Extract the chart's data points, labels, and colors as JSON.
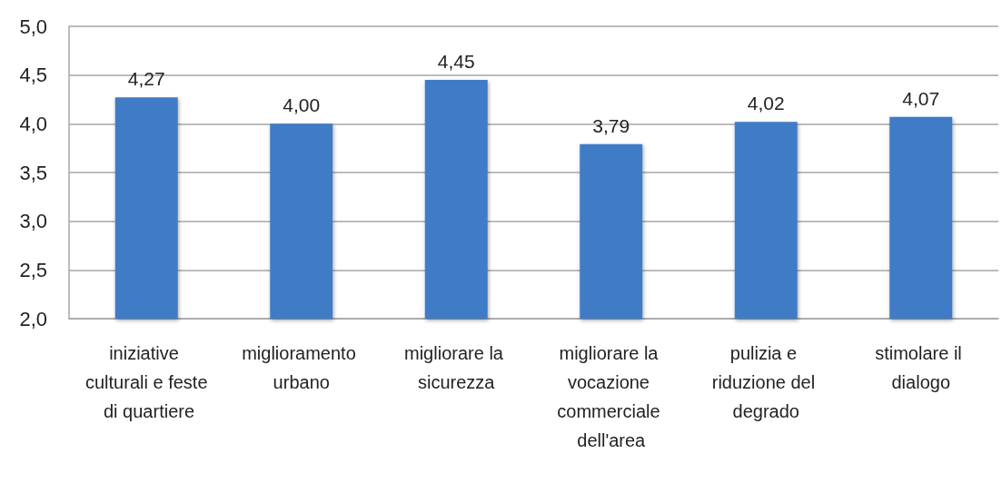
{
  "chart_data": {
    "type": "bar",
    "categories": [
      "iniziative culturali e feste di quartiere",
      "miglioramento urbano",
      "migliorare la sicurezza",
      "migliorare la vocazione commerciale dell'area",
      "pulizia e riduzione del degrado",
      "stimolare il dialogo"
    ],
    "values": [
      4.27,
      4.0,
      4.45,
      3.79,
      4.02,
      4.07
    ],
    "value_labels": [
      "4,27",
      "4,00",
      "4,45",
      "3,79",
      "4,02",
      "4,07"
    ],
    "color": "#3f7bc6",
    "ylim": [
      2,
      5
    ],
    "yticks": [
      {
        "value": 2,
        "label": "2,0"
      },
      {
        "value": 2.5,
        "label": "2,5"
      },
      {
        "value": 3,
        "label": "3,0"
      },
      {
        "value": 3.5,
        "label": "3,5"
      },
      {
        "value": 4,
        "label": "4,0"
      },
      {
        "value": 4.5,
        "label": "4,5"
      },
      {
        "value": 5,
        "label": "5,0"
      }
    ],
    "grid": true
  }
}
